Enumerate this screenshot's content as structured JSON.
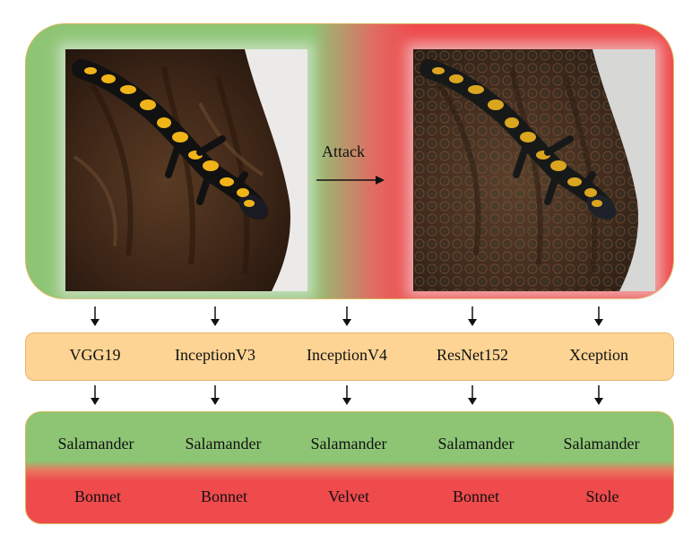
{
  "attack_label": "Attack",
  "models": [
    "VGG19",
    "InceptionV3",
    "InceptionV4",
    "ResNet152",
    "Xception"
  ],
  "clean_predictions": [
    "Salamander",
    "Salamander",
    "Salamander",
    "Salamander",
    "Salamander"
  ],
  "adversarial_predictions": [
    "Bonnet",
    "Bonnet",
    "Velvet",
    "Bonnet",
    "Stole"
  ],
  "images": {
    "clean": "salamander-on-bark-photo",
    "adversarial": "perturbed-salamander-photo"
  },
  "colors": {
    "clean_green": "#8ec575",
    "attack_red": "#ef4a4c",
    "model_bar": "#fdd494"
  }
}
